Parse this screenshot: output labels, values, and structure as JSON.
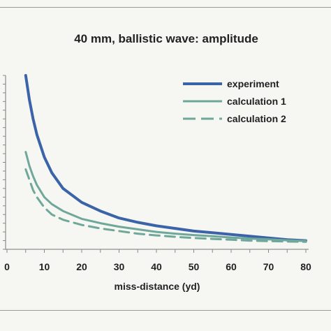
{
  "chart_data": {
    "type": "line",
    "title": "40 mm, ballistic wave: amplitude",
    "xlabel": "miss-distance  (yd)",
    "ylabel": "",
    "xlim": [
      0,
      80
    ],
    "xticks": [
      0,
      10,
      20,
      30,
      40,
      50,
      60,
      70,
      80
    ],
    "grid": false,
    "legend_position": "top-right",
    "series": [
      {
        "name": "experiment",
        "color": "#3b64a8",
        "style": "solid-thick",
        "x": [
          5,
          6,
          7,
          8,
          10,
          12,
          15,
          20,
          25,
          30,
          35,
          40,
          45,
          50,
          55,
          60,
          65,
          70,
          75,
          80
        ],
        "y": [
          1.0,
          0.86,
          0.75,
          0.66,
          0.53,
          0.44,
          0.35,
          0.27,
          0.22,
          0.18,
          0.155,
          0.135,
          0.12,
          0.105,
          0.095,
          0.085,
          0.075,
          0.065,
          0.055,
          0.05
        ]
      },
      {
        "name": "calculation 1",
        "color": "#6fa89a",
        "style": "solid",
        "x": [
          5,
          6,
          7,
          8,
          10,
          12,
          15,
          20,
          25,
          30,
          35,
          40,
          45,
          50,
          55,
          60,
          65,
          70,
          75,
          80
        ],
        "y": [
          0.56,
          0.48,
          0.42,
          0.37,
          0.3,
          0.26,
          0.22,
          0.175,
          0.15,
          0.13,
          0.115,
          0.1,
          0.09,
          0.082,
          0.075,
          0.068,
          0.062,
          0.057,
          0.052,
          0.048
        ]
      },
      {
        "name": "calculation 2",
        "color": "#6fa89a",
        "style": "dashed",
        "x": [
          5,
          6,
          7,
          8,
          10,
          12,
          15,
          20,
          25,
          30,
          35,
          40,
          45,
          50,
          55,
          60,
          65,
          70,
          75,
          80
        ],
        "y": [
          0.46,
          0.4,
          0.34,
          0.3,
          0.24,
          0.2,
          0.17,
          0.14,
          0.12,
          0.105,
          0.09,
          0.08,
          0.072,
          0.065,
          0.06,
          0.055,
          0.05,
          0.047,
          0.045,
          0.043
        ]
      }
    ]
  }
}
